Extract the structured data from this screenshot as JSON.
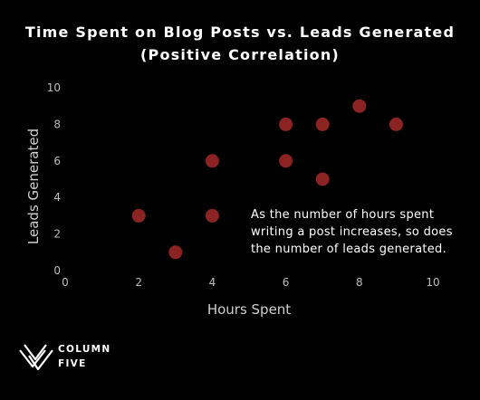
{
  "chart_data": {
    "type": "scatter",
    "title": "Time Spent on Blog Posts vs. Leads Generated",
    "subtitle": "(Positive Correlation)",
    "xlabel": "Hours Spent",
    "ylabel": "Leads Generated",
    "xlim": [
      0,
      10
    ],
    "ylim": [
      0,
      10
    ],
    "x_ticks": [
      "0",
      "2",
      "4",
      "6",
      "8",
      "10"
    ],
    "y_ticks": [
      "0",
      "2",
      "4",
      "6",
      "8",
      "10"
    ],
    "grid": false,
    "point_color": "#8B2323",
    "points": [
      {
        "x": 2,
        "y": 3
      },
      {
        "x": 3,
        "y": 1
      },
      {
        "x": 4,
        "y": 3
      },
      {
        "x": 4,
        "y": 6
      },
      {
        "x": 6,
        "y": 8
      },
      {
        "x": 6,
        "y": 6
      },
      {
        "x": 7,
        "y": 8
      },
      {
        "x": 7,
        "y": 5
      },
      {
        "x": 8,
        "y": 9
      },
      {
        "x": 9,
        "y": 8
      }
    ],
    "annotation_lines": [
      "As the number of hours spent",
      "writing a post increases, so does",
      "the number of leads generated."
    ]
  },
  "brand": {
    "line1": "COLUMN",
    "line2": "FIVE",
    "logo_icon": "column-five-logo-icon"
  },
  "colors": {
    "background": "#000000",
    "text": "#ffffff",
    "tick": "#bdbdbd"
  }
}
